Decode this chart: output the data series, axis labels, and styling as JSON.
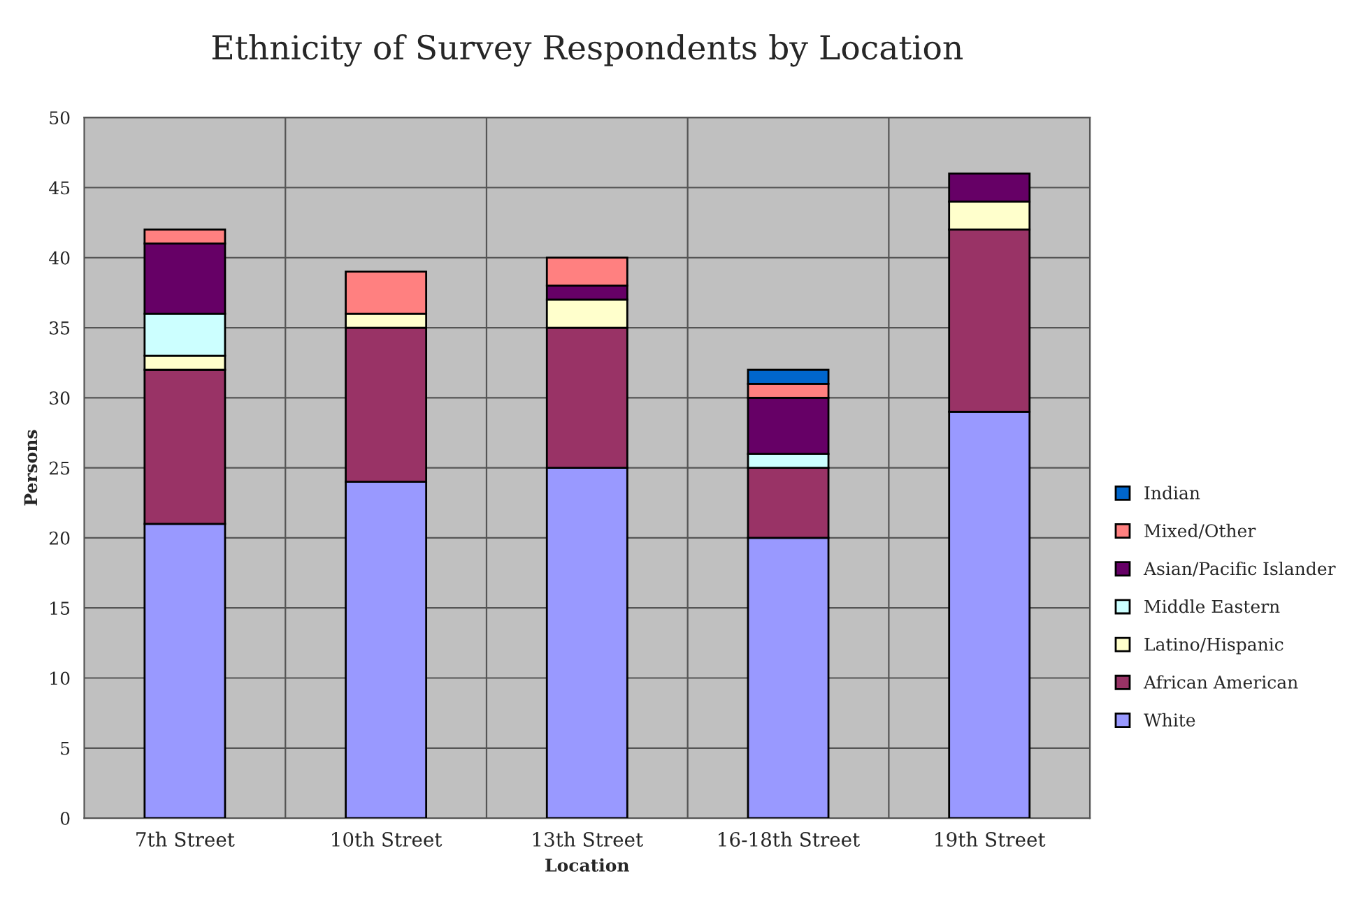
{
  "chart_data": {
    "type": "bar",
    "title": "Ethnicity of Survey Respondents by Location",
    "xlabel": "Location",
    "ylabel": "Persons",
    "categories": [
      "7th Street",
      "10th Street",
      "13th Street",
      "16-18th Street",
      "19th Street"
    ],
    "stacked": true,
    "ylim": [
      0,
      50
    ],
    "yticks": [
      0,
      5,
      10,
      15,
      20,
      25,
      30,
      35,
      40,
      45,
      50
    ],
    "grid": true,
    "legend": "right",
    "series": [
      {
        "name": "White",
        "color": "#9999ff",
        "values": [
          21,
          24,
          25,
          20,
          29
        ]
      },
      {
        "name": "African American",
        "color": "#993366",
        "values": [
          11,
          11,
          10,
          5,
          13
        ]
      },
      {
        "name": "Latino/Hispanic",
        "color": "#ffffcc",
        "values": [
          1,
          1,
          2,
          0,
          2
        ]
      },
      {
        "name": "Middle Eastern",
        "color": "#ccffff",
        "values": [
          3,
          0,
          0,
          1,
          0
        ]
      },
      {
        "name": "Asian/Pacific Islander",
        "color": "#660066",
        "values": [
          5,
          0,
          1,
          4,
          2
        ]
      },
      {
        "name": "Mixed/Other",
        "color": "#ff8080",
        "values": [
          1,
          3,
          2,
          1,
          0
        ]
      },
      {
        "name": "Indian",
        "color": "#0066cc",
        "values": [
          0,
          0,
          0,
          1,
          0
        ]
      }
    ]
  }
}
